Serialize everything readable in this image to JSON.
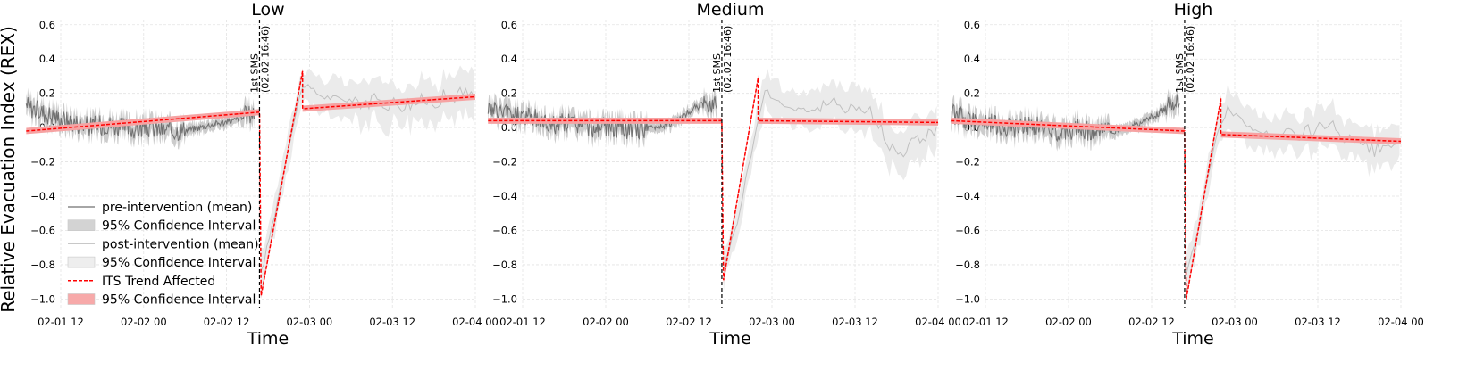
{
  "figure": {
    "ylabel": "Relative Evacuation Index (REX)",
    "xlabel": "Time"
  },
  "legend": [
    {
      "label": "pre-intervention (mean)",
      "kind": "line",
      "color": "#707070"
    },
    {
      "label": "95% Confidence Interval",
      "kind": "patch",
      "color": "#d3d3d3"
    },
    {
      "label": "post-intervention (mean)",
      "kind": "line",
      "color": "#c8c8c8"
    },
    {
      "label": "95% Confidence Interval",
      "kind": "patch",
      "color": "#eeeeee"
    },
    {
      "label": "ITS Trend Affected",
      "kind": "dashed",
      "color": "#ff0000"
    },
    {
      "label": "95% Confidence Interval",
      "kind": "patch",
      "color": "#f7a9a9"
    }
  ],
  "intervention": {
    "label": "1st SMS",
    "time_label": "(02.02 16:46)",
    "x": "2023-02-02 16:46"
  },
  "colors": {
    "pre": "#707070",
    "pre_ci": "#cccccc",
    "post": "#c0c0c0",
    "post_ci": "#ebebeb",
    "trend": "#ff0000",
    "trend_ci": "#f6a3a3",
    "vline": "#000000",
    "grid": "#e3e3e3"
  },
  "chart_data": [
    {
      "type": "line",
      "title": "Low",
      "ylim": [
        -1.05,
        0.63
      ],
      "yticks": [
        0.6,
        0.4,
        0.2,
        0.0,
        -0.2,
        -0.4,
        -0.6,
        -0.8,
        -1.0
      ],
      "ytick_labels": [
        "0.6",
        "0.4",
        "0.2",
        "0.0",
        "−0.2",
        "−0.4",
        "−0.6",
        "−0.8",
        "−1.0"
      ],
      "xticks": [
        "02-01 12",
        "02-02 00",
        "02-02 12",
        "02-03 00",
        "02-03 12",
        "02-04 00"
      ],
      "grid": true,
      "legend_position": "lower-left",
      "series": [
        {
          "name": "pre-intervention (mean)",
          "x": [
            "02-01 07:00",
            "02-01 10:00",
            "02-01 13:00",
            "02-01 16:00",
            "02-01 19:00",
            "02-01 22:00",
            "02-02 01:00",
            "02-02 04:00",
            "02-02 07:00",
            "02-02 10:00",
            "02-02 13:00",
            "02-02 16:00"
          ],
          "y": [
            0.13,
            0.08,
            0.04,
            0.01,
            0.02,
            -0.01,
            0.0,
            -0.02,
            -0.01,
            0.02,
            0.04,
            0.09
          ]
        },
        {
          "name": "post-intervention (mean)",
          "x": [
            "02-02 17:00",
            "02-02 19:00",
            "02-02 21:00",
            "02-02 23:00",
            "02-03 02:00",
            "02-03 06:00",
            "02-03 10:00",
            "02-03 14:00",
            "02-03 18:00",
            "02-03 22:00",
            "02-04 00:00"
          ],
          "y": [
            -0.85,
            -0.5,
            -0.1,
            0.25,
            0.18,
            0.16,
            0.15,
            0.14,
            0.16,
            0.2,
            0.18
          ]
        },
        {
          "name": "ITS Trend Affected",
          "x": [
            "02-01 07:00",
            "02-02 16:46",
            "02-02 17:00",
            "02-02 23:00",
            "02-02 23:00",
            "02-04 00:00"
          ],
          "y": [
            -0.02,
            0.09,
            -0.98,
            0.33,
            0.11,
            0.18
          ]
        }
      ]
    },
    {
      "type": "line",
      "title": "Medium",
      "ylim": [
        -1.05,
        0.63
      ],
      "yticks": [
        0.6,
        0.4,
        0.2,
        0.0,
        -0.2,
        -0.4,
        -0.6,
        -0.8,
        -1.0
      ],
      "ytick_labels": [
        "0.6",
        "0.4",
        "0.2",
        "0.0",
        "−0.2",
        "−0.4",
        "−0.6",
        "−0.8",
        "−1.0"
      ],
      "xticks": [
        "02-01 12",
        "02-02 00",
        "02-02 12",
        "02-03 00",
        "02-03 12",
        "02-04 00"
      ],
      "grid": true,
      "series": [
        {
          "name": "pre-intervention (mean)",
          "x": [
            "02-01 07:00",
            "02-01 10:00",
            "02-01 13:00",
            "02-01 16:00",
            "02-01 19:00",
            "02-01 22:00",
            "02-02 01:00",
            "02-02 04:00",
            "02-02 07:00",
            "02-02 10:00",
            "02-02 13:00",
            "02-02 16:00"
          ],
          "y": [
            0.1,
            0.08,
            0.06,
            0.02,
            0.03,
            0.0,
            0.0,
            -0.01,
            0.0,
            0.03,
            0.12,
            0.15
          ]
        },
        {
          "name": "post-intervention (mean)",
          "x": [
            "02-02 17:00",
            "02-02 19:00",
            "02-02 21:00",
            "02-02 23:00",
            "02-03 02:00",
            "02-03 06:00",
            "02-03 10:00",
            "02-03 14:00",
            "02-03 18:00",
            "02-03 22:00",
            "02-04 00:00"
          ],
          "y": [
            -0.82,
            -0.55,
            -0.15,
            0.22,
            0.12,
            0.1,
            0.14,
            0.1,
            -0.15,
            -0.05,
            0.02
          ]
        },
        {
          "name": "ITS Trend Affected",
          "x": [
            "02-01 07:00",
            "02-02 16:46",
            "02-02 17:00",
            "02-02 22:00",
            "02-02 22:00",
            "02-04 00:00"
          ],
          "y": [
            0.04,
            0.04,
            -0.89,
            0.29,
            0.04,
            0.03
          ]
        }
      ]
    },
    {
      "type": "line",
      "title": "High",
      "ylim": [
        -1.05,
        0.63
      ],
      "yticks": [
        0.6,
        0.4,
        0.2,
        0.0,
        -0.2,
        -0.4,
        -0.6,
        -0.8,
        -1.0
      ],
      "ytick_labels": [
        "0.6",
        "0.4",
        "0.2",
        "0.0",
        "−0.2",
        "−0.4",
        "−0.6",
        "−0.8",
        "−1.0"
      ],
      "xticks": [
        "02-01 12",
        "02-02 00",
        "02-02 12",
        "02-03 00",
        "02-03 12",
        "02-04 00"
      ],
      "grid": true,
      "series": [
        {
          "name": "pre-intervention (mean)",
          "x": [
            "02-01 07:00",
            "02-01 10:00",
            "02-01 13:00",
            "02-01 16:00",
            "02-01 19:00",
            "02-01 22:00",
            "02-02 01:00",
            "02-02 04:00",
            "02-02 07:00",
            "02-02 10:00",
            "02-02 13:00",
            "02-02 16:00"
          ],
          "y": [
            0.08,
            0.04,
            0.02,
            0.0,
            0.01,
            -0.02,
            -0.01,
            -0.02,
            -0.02,
            0.02,
            0.08,
            0.18
          ]
        },
        {
          "name": "post-intervention (mean)",
          "x": [
            "02-02 17:00",
            "02-02 19:00",
            "02-02 21:00",
            "02-02 23:00",
            "02-03 02:00",
            "02-03 06:00",
            "02-03 10:00",
            "02-03 14:00",
            "02-03 18:00",
            "02-03 22:00",
            "02-04 00:00"
          ],
          "y": [
            -0.85,
            -0.55,
            -0.1,
            0.12,
            0.0,
            -0.05,
            -0.02,
            0.0,
            -0.12,
            -0.15,
            -0.05
          ]
        },
        {
          "name": "ITS Trend Affected",
          "x": [
            "02-01 07:00",
            "02-02 16:46",
            "02-02 17:00",
            "02-02 22:00",
            "02-02 22:00",
            "02-04 00:00"
          ],
          "y": [
            0.04,
            -0.02,
            -1.0,
            0.17,
            -0.04,
            -0.08
          ]
        }
      ]
    }
  ]
}
